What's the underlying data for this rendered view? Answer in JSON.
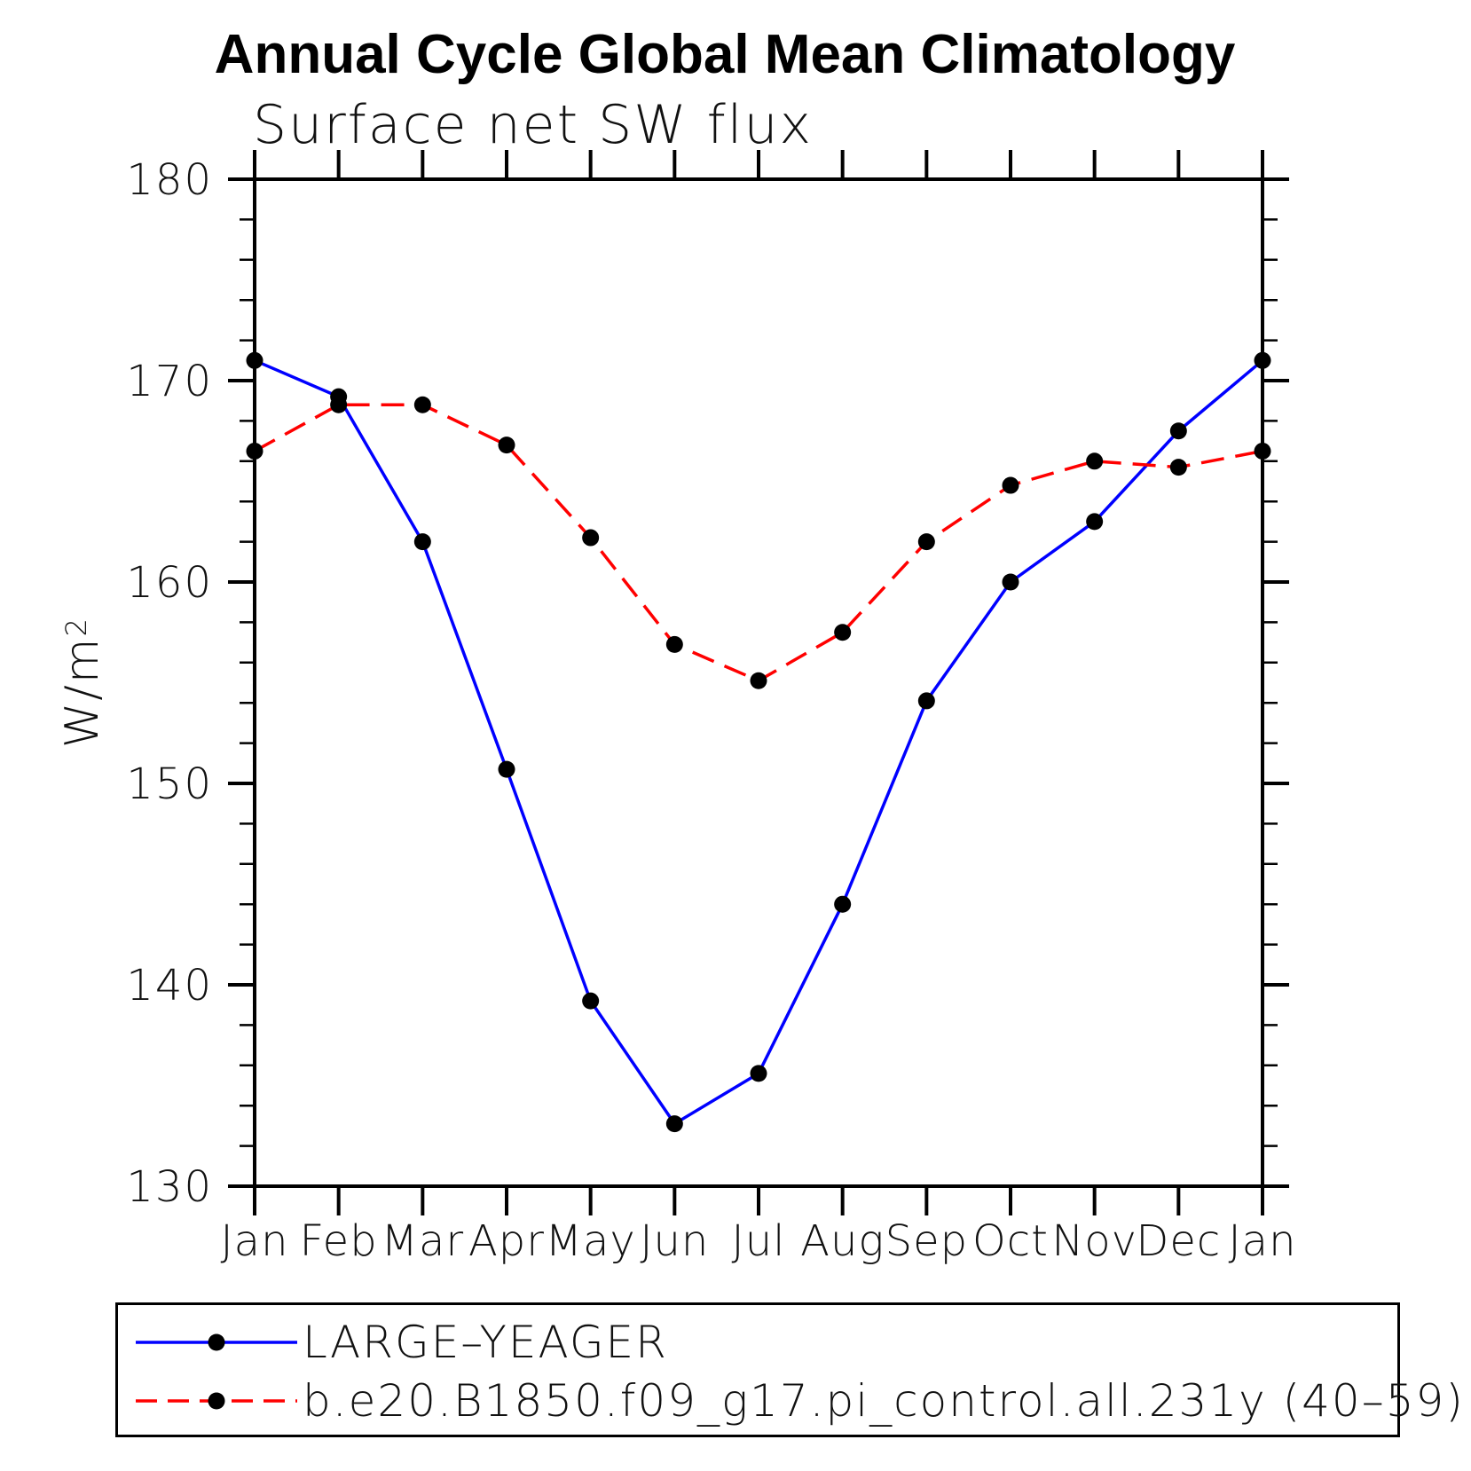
{
  "chart_data": {
    "type": "line",
    "title": "Annual Cycle Global Mean Climatology",
    "subtitle": "Surface net SW flux",
    "ylabel": "W/m²",
    "ylabel_parts": {
      "base": "W/m",
      "exp": "2"
    },
    "xlabel": "",
    "categories": [
      "Jan",
      "Feb",
      "Mar",
      "Apr",
      "May",
      "Jun",
      "Jul",
      "Aug",
      "Sep",
      "Oct",
      "Nov",
      "Dec",
      "Jan"
    ],
    "ylim": [
      130,
      180
    ],
    "yticks": [
      130,
      140,
      150,
      160,
      170,
      180
    ],
    "ytick_minor_step": 2,
    "grid": false,
    "legend_position": "bottom-left",
    "axis_color": "#000000",
    "marker_color": "#000000",
    "series": [
      {
        "name": "LARGE–YEAGER",
        "color": "#0000ff",
        "line_style": "solid",
        "marker": "filled-circle",
        "values": [
          171.0,
          169.2,
          162.0,
          150.7,
          139.2,
          133.1,
          135.6,
          144.0,
          154.1,
          160.0,
          163.0,
          167.5,
          171.0
        ]
      },
      {
        "name": "b.e20.B1850.f09_g17.pi_control.all.231y (40–59)",
        "color": "#ff0000",
        "line_style": "dashed",
        "marker": "filled-circle",
        "values": [
          166.5,
          168.8,
          168.8,
          166.8,
          162.2,
          156.9,
          155.1,
          157.5,
          162.0,
          164.8,
          166.0,
          165.7,
          166.5
        ]
      }
    ]
  }
}
